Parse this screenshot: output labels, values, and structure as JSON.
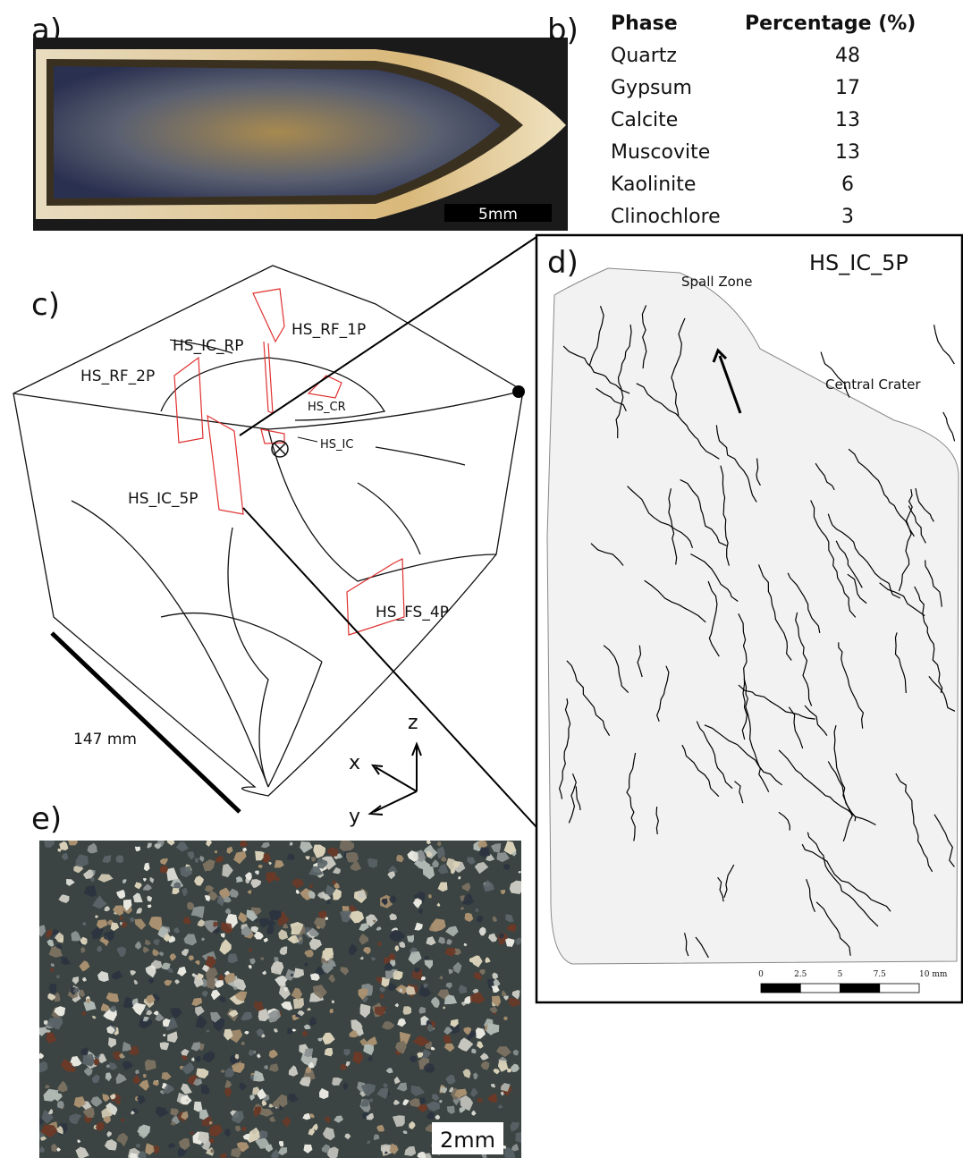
{
  "panel_a": {
    "label": "a)",
    "scale_bar": "5mm"
  },
  "panel_b": {
    "label": "b)",
    "table": {
      "header": [
        "Phase",
        "Percentage (%)"
      ],
      "rows": [
        [
          "Quartz",
          48
        ],
        [
          "Gypsum",
          17
        ],
        [
          "Calcite",
          13
        ],
        [
          "Muscovite",
          13
        ],
        [
          "Kaolinite",
          6
        ],
        [
          "Clinochlore",
          3
        ]
      ]
    }
  },
  "panel_c": {
    "label": "c)",
    "sample_labels": [
      "HS_RF_1P",
      "HS_IC_RP",
      "HS_RF_2P",
      "HS_CR",
      "HS_IC",
      "HS_IC_5P",
      "HS_FS_4P"
    ],
    "scale_bar": "147 mm",
    "axes": [
      "x",
      "z",
      "y"
    ]
  },
  "panel_d": {
    "label": "d)",
    "title": "HS_IC_5P",
    "annotations": [
      "Spall Zone",
      "Central Crater"
    ],
    "scale_ticks": [
      "0",
      "2.5",
      "5",
      "7.5",
      "10 mm"
    ]
  },
  "panel_e": {
    "label": "e)",
    "scale_bar": "2mm"
  }
}
